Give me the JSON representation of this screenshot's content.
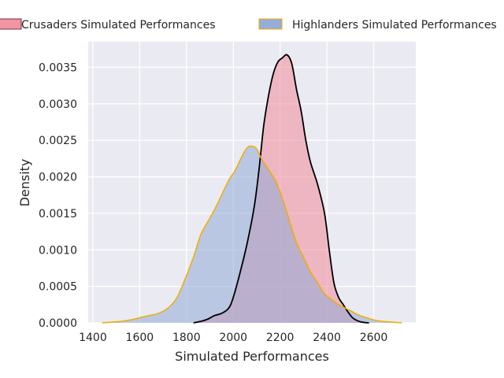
{
  "chart_data": {
    "type": "area",
    "title": "",
    "xlabel": "Simulated Performances",
    "ylabel": "Density",
    "xlim": [
      1380,
      2780
    ],
    "ylim": [
      0,
      0.00385
    ],
    "x_ticks": [
      1400,
      1600,
      1800,
      2000,
      2200,
      2400,
      2600
    ],
    "x_tick_labels": [
      "1400",
      "1600",
      "1800",
      "2000",
      "2200",
      "2400",
      "2600"
    ],
    "y_ticks": [
      0,
      0.0005,
      0.001,
      0.0015,
      0.002,
      0.0025,
      0.003,
      0.0035
    ],
    "y_tick_labels": [
      "0.0000",
      "0.0005",
      "0.0010",
      "0.0015",
      "0.0020",
      "0.0025",
      "0.0030",
      "0.0035"
    ],
    "grid": true,
    "legend_position": "top",
    "colors": {
      "plot_background": "#eaeaf2",
      "grid": "#ffffff",
      "crusaders_fill": "#f08a99",
      "crusaders_line": "#000000",
      "highlanders_fill": "#8fa9d6",
      "highlanders_line": "#f0ad00",
      "text": "#262626"
    },
    "series": [
      {
        "name": "Crusaders Simulated Performances",
        "x": [
          1830,
          1860,
          1890,
          1920,
          1950,
          1980,
          2000,
          2030,
          2060,
          2090,
          2110,
          2130,
          2150,
          2170,
          2190,
          2210,
          2230,
          2250,
          2270,
          2290,
          2310,
          2330,
          2360,
          2390,
          2410,
          2430,
          2450,
          2470,
          2490,
          2510,
          2530,
          2550,
          2580
        ],
        "y": [
          0.0,
          2e-05,
          5e-05,
          0.0001,
          0.00013,
          0.0002,
          0.00035,
          0.0007,
          0.0011,
          0.0016,
          0.0021,
          0.0027,
          0.0031,
          0.0034,
          0.00357,
          0.00363,
          0.00367,
          0.00355,
          0.0032,
          0.0029,
          0.0025,
          0.0022,
          0.0019,
          0.0015,
          0.001,
          0.00055,
          0.00035,
          0.00025,
          0.00015,
          7e-05,
          3e-05,
          1e-05,
          0.0
        ]
      },
      {
        "name": "Highlanders Simulated Performances",
        "x": [
          1440,
          1480,
          1520,
          1560,
          1600,
          1640,
          1680,
          1720,
          1760,
          1800,
          1830,
          1860,
          1890,
          1920,
          1950,
          1980,
          2010,
          2040,
          2060,
          2080,
          2100,
          2120,
          2150,
          2180,
          2210,
          2240,
          2270,
          2300,
          2330,
          2360,
          2390,
          2420,
          2450,
          2480,
          2510,
          2540,
          2570,
          2600,
          2640,
          2680,
          2720
        ],
        "y": [
          0.0,
          1e-05,
          2e-05,
          4e-05,
          7e-05,
          0.0001,
          0.00013,
          0.0002,
          0.00035,
          0.00065,
          0.0009,
          0.0012,
          0.00138,
          0.00155,
          0.00175,
          0.00195,
          0.0021,
          0.0023,
          0.0024,
          0.00242,
          0.00238,
          0.00225,
          0.0021,
          0.00195,
          0.0017,
          0.0014,
          0.0011,
          0.0009,
          0.0007,
          0.00055,
          0.0004,
          0.00032,
          0.00025,
          0.0002,
          0.00015,
          0.0001,
          7e-05,
          4e-05,
          2e-05,
          1e-05,
          0.0
        ]
      }
    ]
  }
}
